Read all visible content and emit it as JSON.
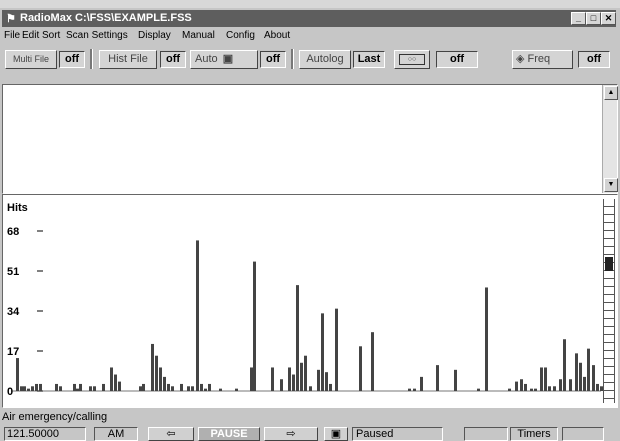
{
  "window": {
    "title": "RadioMax C:\\FSS\\EXAMPLE.FSS"
  },
  "menu": [
    "File",
    "Edit",
    "Sort",
    "Scan Settings",
    "Display",
    "Manual",
    "Config",
    "About"
  ],
  "toolbar": {
    "multi_file": "Multi File",
    "multi_file_state": "off",
    "hist_file": "Hist File",
    "hist_file_state": "off",
    "auto": "Auto",
    "auto_state": "off",
    "autolog": "Autolog",
    "autolog_state": "Last",
    "rec_state": "off",
    "freq": "Freq",
    "freq_state": "off"
  },
  "chart_data": {
    "type": "bar",
    "ylabel": "Hits",
    "yticks": [
      0,
      17,
      34,
      51,
      68
    ],
    "ylim": [
      0,
      68
    ],
    "bars": [
      {
        "x": 13,
        "v": 14
      },
      {
        "x": 17,
        "v": 2
      },
      {
        "x": 20,
        "v": 2
      },
      {
        "x": 24,
        "v": 1
      },
      {
        "x": 28,
        "v": 2
      },
      {
        "x": 32,
        "v": 3
      },
      {
        "x": 36,
        "v": 3
      },
      {
        "x": 52,
        "v": 3
      },
      {
        "x": 56,
        "v": 2
      },
      {
        "x": 70,
        "v": 3
      },
      {
        "x": 73,
        "v": 1
      },
      {
        "x": 76,
        "v": 3
      },
      {
        "x": 86,
        "v": 2
      },
      {
        "x": 90,
        "v": 2
      },
      {
        "x": 99,
        "v": 3
      },
      {
        "x": 107,
        "v": 10
      },
      {
        "x": 111,
        "v": 7
      },
      {
        "x": 115,
        "v": 4
      },
      {
        "x": 136,
        "v": 2
      },
      {
        "x": 139,
        "v": 3
      },
      {
        "x": 148,
        "v": 20
      },
      {
        "x": 152,
        "v": 15
      },
      {
        "x": 156,
        "v": 10
      },
      {
        "x": 160,
        "v": 6
      },
      {
        "x": 164,
        "v": 3
      },
      {
        "x": 168,
        "v": 2
      },
      {
        "x": 177,
        "v": 3
      },
      {
        "x": 184,
        "v": 2
      },
      {
        "x": 188,
        "v": 2
      },
      {
        "x": 193,
        "v": 64
      },
      {
        "x": 197,
        "v": 3
      },
      {
        "x": 201,
        "v": 1
      },
      {
        "x": 205,
        "v": 3
      },
      {
        "x": 216,
        "v": 1
      },
      {
        "x": 232,
        "v": 1
      },
      {
        "x": 247,
        "v": 10
      },
      {
        "x": 250,
        "v": 55
      },
      {
        "x": 268,
        "v": 10
      },
      {
        "x": 277,
        "v": 5
      },
      {
        "x": 285,
        "v": 10
      },
      {
        "x": 289,
        "v": 7
      },
      {
        "x": 293,
        "v": 45
      },
      {
        "x": 297,
        "v": 12
      },
      {
        "x": 301,
        "v": 15
      },
      {
        "x": 306,
        "v": 2
      },
      {
        "x": 314,
        "v": 9
      },
      {
        "x": 318,
        "v": 33
      },
      {
        "x": 322,
        "v": 8
      },
      {
        "x": 326,
        "v": 3
      },
      {
        "x": 332,
        "v": 35
      },
      {
        "x": 356,
        "v": 19
      },
      {
        "x": 368,
        "v": 25
      },
      {
        "x": 405,
        "v": 1
      },
      {
        "x": 410,
        "v": 1
      },
      {
        "x": 417,
        "v": 6
      },
      {
        "x": 433,
        "v": 11
      },
      {
        "x": 451,
        "v": 9
      },
      {
        "x": 474,
        "v": 1
      },
      {
        "x": 482,
        "v": 44
      },
      {
        "x": 505,
        "v": 1
      },
      {
        "x": 512,
        "v": 4
      },
      {
        "x": 517,
        "v": 5
      },
      {
        "x": 521,
        "v": 3
      },
      {
        "x": 527,
        "v": 1
      },
      {
        "x": 531,
        "v": 1
      },
      {
        "x": 537,
        "v": 10
      },
      {
        "x": 541,
        "v": 10
      },
      {
        "x": 545,
        "v": 2
      },
      {
        "x": 550,
        "v": 2
      },
      {
        "x": 556,
        "v": 5
      },
      {
        "x": 560,
        "v": 22
      },
      {
        "x": 566,
        "v": 5
      },
      {
        "x": 572,
        "v": 16
      },
      {
        "x": 576,
        "v": 12
      },
      {
        "x": 580,
        "v": 6
      },
      {
        "x": 584,
        "v": 18
      },
      {
        "x": 589,
        "v": 11
      },
      {
        "x": 593,
        "v": 3
      },
      {
        "x": 597,
        "v": 2
      }
    ]
  },
  "status_text": "Air emergency/calling",
  "bottom": {
    "frequency": "121.50000",
    "mode": "AM",
    "pause": "PAUSE",
    "paused_status": "Paused",
    "timers": "Timers"
  }
}
